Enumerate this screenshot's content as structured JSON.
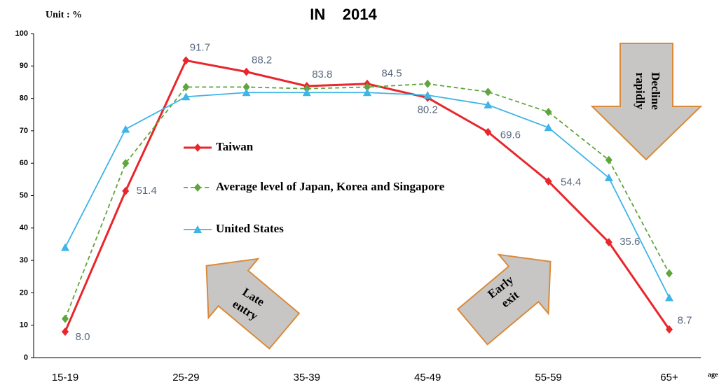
{
  "chart_data": {
    "type": "line",
    "title": "IN    2014",
    "unit_label": "Unit : %",
    "x_label": "age",
    "categories": [
      "15-19",
      null,
      "25-29",
      null,
      "35-39",
      null,
      "45-49",
      null,
      "55-59",
      null,
      "65+"
    ],
    "series": [
      {
        "name": "Taiwan",
        "color": "#e8262b",
        "marker": "diamond",
        "dashed": false,
        "values": [
          8.0,
          51.4,
          91.7,
          88.2,
          83.8,
          84.5,
          80.2,
          69.6,
          54.4,
          35.6,
          8.7
        ],
        "value_labels": [
          "8.0",
          "51.4",
          "91.7",
          "88.2",
          "83.8",
          "84.5",
          "80.2",
          "69.6",
          "54.4",
          "35.6",
          "8.7"
        ]
      },
      {
        "name": "Average level of Japan, Korea and Singapore",
        "color": "#5fa53c",
        "marker": "diamond",
        "dashed": true,
        "values": [
          12,
          60,
          83.5,
          83.5,
          83,
          83.5,
          84.5,
          82,
          75.8,
          61,
          26
        ]
      },
      {
        "name": "United States",
        "color": "#3fb4e6",
        "marker": "triangle",
        "dashed": false,
        "values": [
          34,
          70.5,
          80.5,
          81.8,
          81.8,
          81.8,
          81,
          78,
          71,
          55.5,
          18.5
        ]
      }
    ],
    "ylim": [
      0,
      100
    ],
    "yticks": [
      0,
      10,
      20,
      30,
      40,
      50,
      60,
      70,
      80,
      90,
      100
    ],
    "grid": false,
    "annotations": [
      {
        "lines": [
          "Decline",
          "rapidly"
        ]
      },
      {
        "lines": [
          "Late",
          "entry"
        ]
      },
      {
        "lines": [
          "Early",
          "exit"
        ]
      }
    ]
  }
}
